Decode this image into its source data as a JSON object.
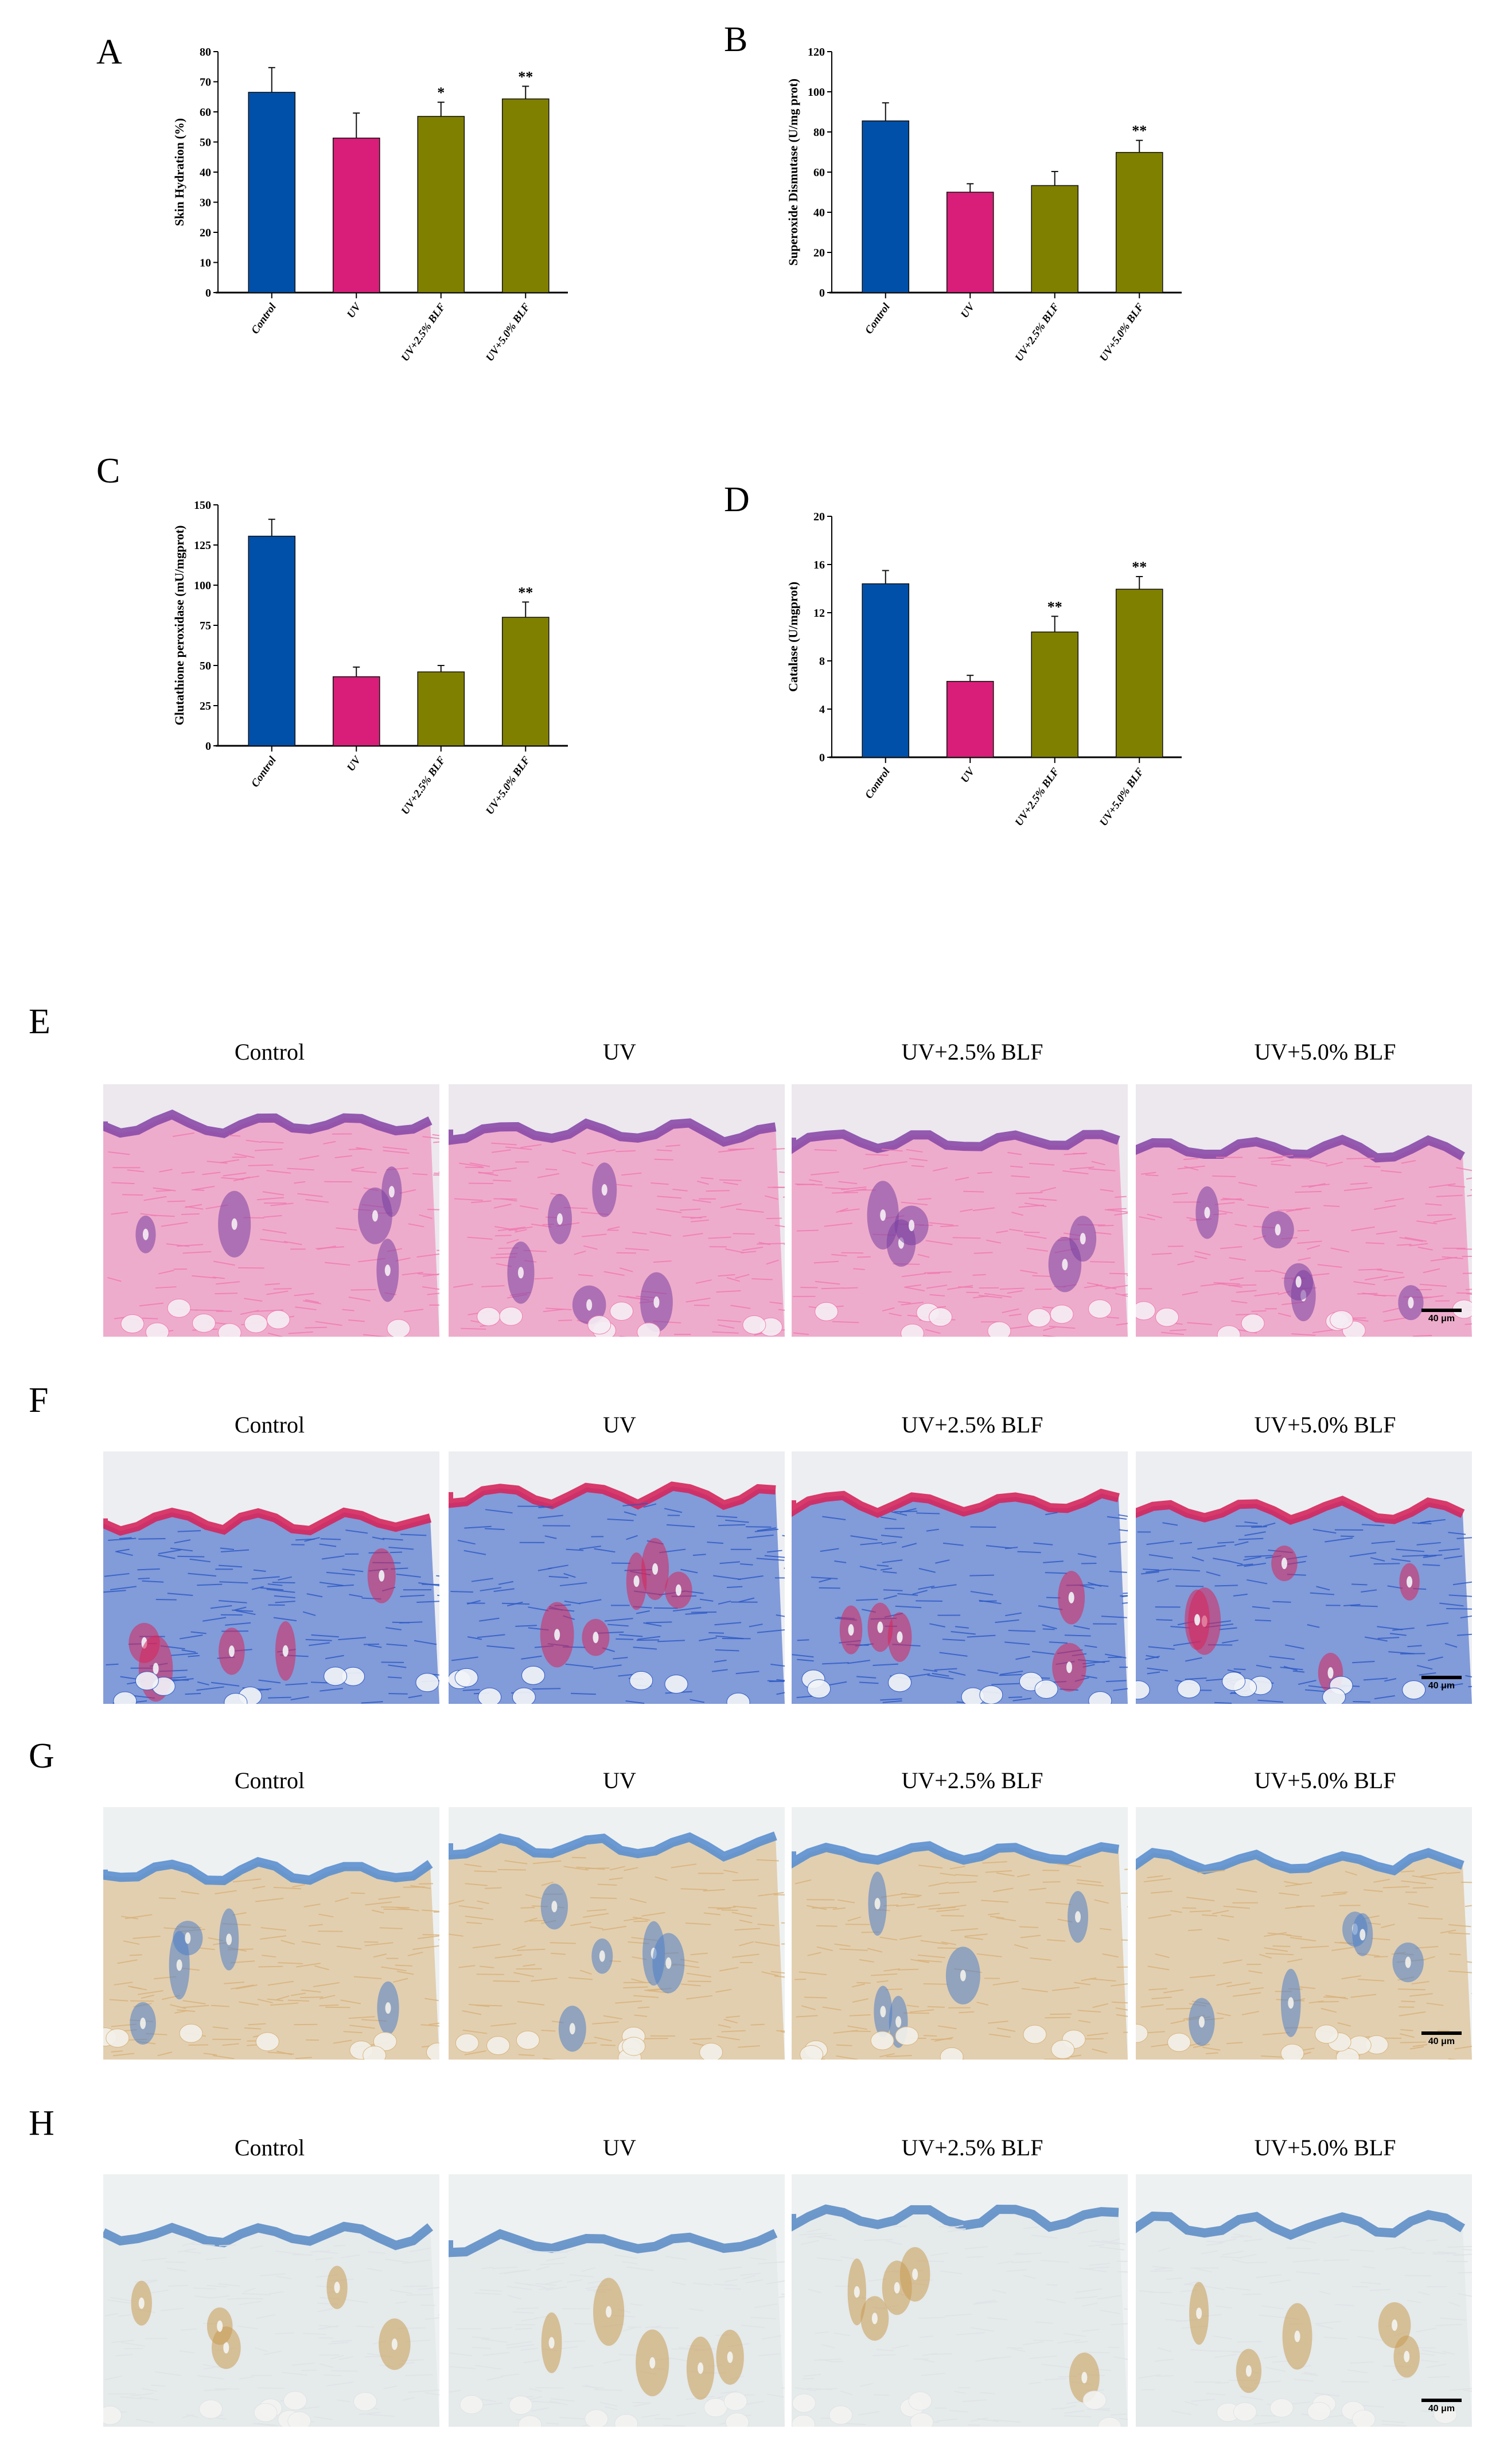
{
  "figure": {
    "groups": [
      "Control",
      "UV",
      "UV+2.5% BLF",
      "UV+5.0% BLF"
    ],
    "bar_colors": [
      "#0050AA",
      "#D81E78",
      "#808000",
      "#808000"
    ],
    "panel_letters": [
      "A",
      "B",
      "C",
      "D",
      "E",
      "F",
      "G",
      "H"
    ]
  },
  "chart_data": [
    {
      "panel": "A",
      "type": "bar",
      "title": "",
      "xlabel": "",
      "ylabel": "Skin Hydration (%)",
      "categories": [
        "Control",
        "UV",
        "UV+2.5% BLF",
        "UV+5.0% BLF"
      ],
      "values": [
        66.5,
        51.3,
        58.5,
        64.3
      ],
      "errors": [
        8.2,
        8.3,
        4.7,
        4.2
      ],
      "significance": [
        "",
        "",
        "*",
        "**"
      ],
      "ylim": [
        0,
        80
      ],
      "yticks": [
        0,
        10,
        20,
        30,
        40,
        50,
        60,
        70,
        80
      ],
      "grid": false,
      "legend": "none"
    },
    {
      "panel": "B",
      "type": "bar",
      "title": "",
      "xlabel": "",
      "ylabel": "Superoxide Dismutase (U/mg prot)",
      "categories": [
        "Control",
        "UV",
        "UV+2.5% BLF",
        "UV+5.0% BLF"
      ],
      "values": [
        85.5,
        50,
        53.3,
        69.8
      ],
      "errors": [
        9,
        4.2,
        7,
        6
      ],
      "significance": [
        "",
        "",
        "",
        "**"
      ],
      "ylim": [
        0,
        120
      ],
      "yticks": [
        0,
        20,
        40,
        60,
        80,
        100,
        120
      ],
      "grid": false,
      "legend": "none"
    },
    {
      "panel": "C",
      "type": "bar",
      "title": "",
      "xlabel": "",
      "ylabel": "Glutathione peroxidase (mU/mgprot)",
      "categories": [
        "Control",
        "UV",
        "UV+2.5% BLF",
        "UV+5.0% BLF"
      ],
      "values": [
        130.5,
        43,
        46,
        80
      ],
      "errors": [
        10.5,
        6,
        4,
        9.5
      ],
      "significance": [
        "",
        "",
        "",
        "**"
      ],
      "ylim": [
        0,
        150
      ],
      "yticks": [
        0,
        25,
        50,
        75,
        100,
        125,
        150
      ],
      "grid": false,
      "legend": "none"
    },
    {
      "panel": "D",
      "type": "bar",
      "title": "",
      "xlabel": "",
      "ylabel": "Catalase (U/mgprot)",
      "categories": [
        "Control",
        "UV",
        "UV+2.5% BLF",
        "UV+5.0% BLF"
      ],
      "values": [
        14.4,
        6.3,
        10.4,
        13.95
      ],
      "errors": [
        1.1,
        0.5,
        1.3,
        1.05
      ],
      "significance": [
        "",
        "",
        "**",
        "**"
      ],
      "ylim": [
        0,
        20
      ],
      "yticks": [
        0,
        4,
        8,
        12,
        16,
        20
      ],
      "grid": false,
      "legend": "none"
    }
  ],
  "histology": [
    {
      "panel": "E",
      "stain": "H&E",
      "labels": [
        "Control",
        "UV",
        "UV+2.5% BLF",
        "UV+5.0% BLF"
      ],
      "scale_bar": "40 μm"
    },
    {
      "panel": "F",
      "stain": "Masson trichrome",
      "labels": [
        "Control",
        "UV",
        "UV+2.5% BLF",
        "UV+5.0% BLF"
      ],
      "scale_bar": "40 μm"
    },
    {
      "panel": "G",
      "stain": "IHC",
      "labels": [
        "Control",
        "UV",
        "UV+2.5% BLF",
        "UV+5.0% BLF"
      ],
      "scale_bar": "40 μm"
    },
    {
      "panel": "H",
      "stain": "IHC",
      "labels": [
        "Control",
        "UV",
        "UV+2.5% BLF",
        "UV+5.0% BLF"
      ],
      "scale_bar": "40 μm"
    }
  ]
}
